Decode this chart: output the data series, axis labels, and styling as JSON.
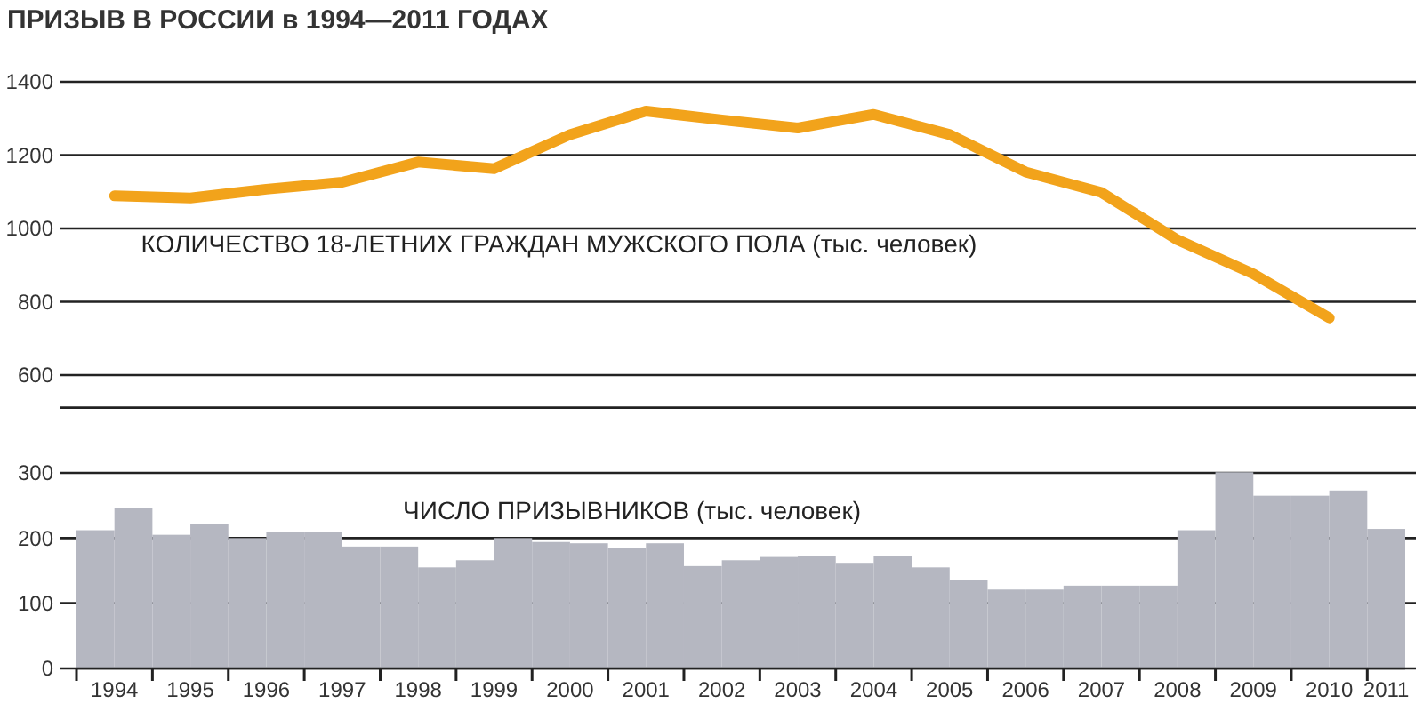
{
  "chart_data": {
    "type": "bar",
    "title": "ПРИЗЫВ В РОССИИ в 1994—2011 ГОДАХ",
    "xlim": [
      1994,
      2011.5
    ],
    "xticks": [
      {
        "value": 1994,
        "label": null
      },
      {
        "value": 1995,
        "label": null
      },
      {
        "value": 1996,
        "label": null
      },
      {
        "value": 1997,
        "label": null
      },
      {
        "value": 1998,
        "label": null
      },
      {
        "value": 1999,
        "label": null
      },
      {
        "value": 2000,
        "label": null
      },
      {
        "value": 2001,
        "label": null
      },
      {
        "value": 2002,
        "label": null
      },
      {
        "value": 2003,
        "label": null
      },
      {
        "value": 2004,
        "label": null
      },
      {
        "value": 2005,
        "label": null
      },
      {
        "value": 2006,
        "label": null
      },
      {
        "value": 2007,
        "label": null
      },
      {
        "value": 2008,
        "label": null
      },
      {
        "value": 2009,
        "label": null
      },
      {
        "value": 2010,
        "label": null
      },
      {
        "value": 2011,
        "label": null
      },
      {
        "value": 1994.5,
        "label": "1994"
      },
      {
        "value": 1995.5,
        "label": "1995"
      },
      {
        "value": 1996.5,
        "label": "1996"
      },
      {
        "value": 1997.5,
        "label": "1997"
      },
      {
        "value": 1998.5,
        "label": "1998"
      },
      {
        "value": 1999.5,
        "label": "1999"
      },
      {
        "value": 2000.5,
        "label": "2000"
      },
      {
        "value": 2001.5,
        "label": "2001"
      },
      {
        "value": 2002.5,
        "label": "2002"
      },
      {
        "value": 2003.5,
        "label": "2003"
      },
      {
        "value": 2004.5,
        "label": "2004"
      },
      {
        "value": 2005.5,
        "label": "2005"
      },
      {
        "value": 2006.5,
        "label": "2006"
      },
      {
        "value": 2007.5,
        "label": "2007"
      },
      {
        "value": 2008.5,
        "label": "2008"
      },
      {
        "value": 2009.5,
        "label": "2009"
      },
      {
        "value": 2010.5,
        "label": "2010"
      },
      {
        "value": 2011.25,
        "label": "2011"
      }
    ],
    "ylim": [
      0,
      900
    ],
    "yticks": [
      0,
      100,
      200,
      300,
      {
        "value": 400,
        "label": null
      }
    ],
    "y2lim": [
      -200,
      1400
    ],
    "y2ticks": [
      600,
      800,
      1000,
      1200,
      1400
    ],
    "grid": "y",
    "legend": false,
    "marker": "none",
    "series": [
      {
        "name": "ЧИСЛО ПРИЗЫВНИКОВ (тыс. человек)",
        "color": "#b5b7c1",
        "x": [
          1994.25,
          1994.75,
          1995.25,
          1995.75,
          1996.25,
          1996.75,
          1997.25,
          1997.75,
          1998.25,
          1998.75,
          1999.25,
          1999.75,
          2000.25,
          2000.75,
          2001.25,
          2001.75,
          2002.25,
          2002.75,
          2003.25,
          2003.75,
          2004.25,
          2004.75,
          2005.25,
          2005.75,
          2006.25,
          2006.75,
          2007.25,
          2007.75,
          2008.25,
          2008.75,
          2009.25,
          2009.75,
          2010.25,
          2010.75,
          2011.25
        ],
        "values": [
          212,
          246,
          205,
          221,
          200,
          209,
          209,
          187,
          187,
          155,
          166,
          200,
          194,
          192,
          185,
          192,
          157,
          166,
          171,
          173,
          162,
          173,
          155,
          135,
          121,
          121,
          127,
          127,
          127,
          212,
          301,
          265,
          265,
          273,
          214
        ]
      },
      {
        "type": "line",
        "axis": "y2",
        "name": "КОЛИЧЕСТВО 18-ЛЕТНИХ ГРАЖДАН МУЖСКОГО ПОЛА (тыс. человек)",
        "color": "#f2a31b",
        "x": [
          1994.5,
          1995.5,
          1996.5,
          1997.5,
          1998.5,
          1999.5,
          2000.5,
          2001.5,
          2002.5,
          2003.5,
          2004.5,
          2005.5,
          2006.5,
          2007.5,
          2008.5,
          2009.5,
          2010.5
        ],
        "values": [
          1089,
          1083,
          1107,
          1126,
          1181,
          1163,
          1256,
          1320,
          1296,
          1274,
          1311,
          1256,
          1154,
          1098,
          969,
          876,
          756
        ]
      }
    ]
  }
}
